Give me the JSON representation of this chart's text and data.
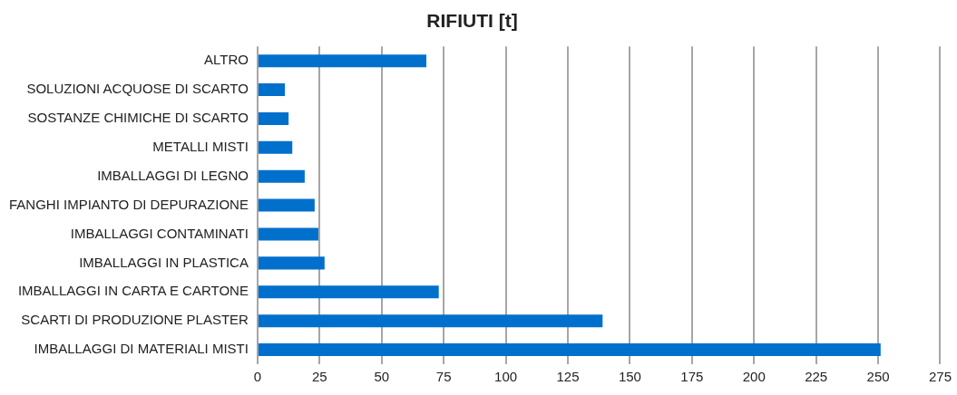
{
  "chart_data": {
    "type": "bar",
    "orientation": "horizontal",
    "title": "RIFIUTI [t]",
    "categories": [
      "ALTRO",
      "SOLUZIONI ACQUOSE DI SCARTO",
      "SOSTANZE CHIMICHE DI SCARTO",
      "METALLI MISTI",
      "IMBALLAGGI DI LEGNO",
      "FANGHI IMPIANTO DI DEPURAZIONE",
      "IMBALLAGGI CONTAMINATI",
      "IMBALLAGGI IN PLASTICA",
      "IMBALLAGGI IN CARTA E CARTONE",
      "SCARTI DI PRODUZIONE PLASTER",
      "IMBALLAGGI DI MATERIALI MISTI"
    ],
    "values": [
      68,
      11,
      12.5,
      14,
      19,
      23,
      24.5,
      27,
      73,
      139,
      251
    ],
    "color": "#0070cc",
    "xlim": [
      0,
      275
    ],
    "xticks": [
      0,
      25,
      50,
      75,
      100,
      125,
      150,
      175,
      200,
      225,
      250,
      275
    ],
    "grid": "x",
    "legend": false
  }
}
